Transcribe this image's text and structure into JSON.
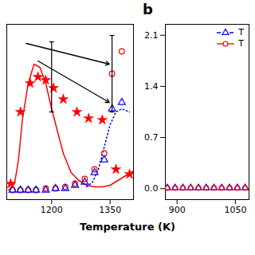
{
  "chart_data": [
    {
      "type": "line",
      "xlabel": "Temperature (K)",
      "xlim": [
        1085,
        1410
      ],
      "ylim": [
        -0.05,
        1.05
      ],
      "xticks": [
        1200,
        1350
      ],
      "tick_labels": "x",
      "series": [
        {
          "type": "line",
          "color": "#ff0000",
          "line_style": "solid",
          "x": [
            1090,
            1105,
            1115,
            1125,
            1140,
            1155,
            1170,
            1185,
            1200,
            1215,
            1230,
            1250,
            1270,
            1290,
            1310,
            1330,
            1350,
            1370,
            1390,
            1410
          ],
          "values": [
            0.01,
            0.05,
            0.2,
            0.45,
            0.68,
            0.8,
            0.78,
            0.68,
            0.52,
            0.38,
            0.24,
            0.12,
            0.07,
            0.04,
            0.03,
            0.03,
            0.04,
            0.07,
            0.1,
            0.13
          ]
        },
        {
          "type": "line",
          "color": "#0000ff",
          "line_style": "dotted",
          "x": [
            1290,
            1305,
            1320,
            1335,
            1350,
            1365,
            1380,
            1400
          ],
          "values": [
            0.03,
            0.06,
            0.14,
            0.28,
            0.42,
            0.5,
            0.52,
            0.5
          ]
        },
        {
          "type": "scatter",
          "color": "#ff0000",
          "marker": "circle",
          "x": [
            1100,
            1120,
            1140,
            1160,
            1185,
            1210,
            1235,
            1260,
            1285,
            1310,
            1335,
            1355,
            1380
          ],
          "values": [
            0.01,
            0.01,
            0.01,
            0.01,
            0.02,
            0.02,
            0.03,
            0.05,
            0.08,
            0.14,
            0.24,
            0.74,
            0.88
          ]
        },
        {
          "type": "scatter",
          "color": "#0000ff",
          "marker": "triangle",
          "x": [
            1100,
            1120,
            1140,
            1160,
            1185,
            1210,
            1235,
            1260,
            1285,
            1310,
            1335,
            1355,
            1380
          ],
          "values": [
            0.01,
            0.01,
            0.01,
            0.01,
            0.01,
            0.02,
            0.02,
            0.04,
            0.06,
            0.12,
            0.2,
            0.52,
            0.56
          ]
        },
        {
          "type": "scatter",
          "color": "#ff0000",
          "marker": "star",
          "x": [
            1095,
            1120,
            1145,
            1165,
            1185,
            1205,
            1230,
            1265,
            1295,
            1330,
            1365,
            1400
          ],
          "values": [
            0.05,
            0.5,
            0.68,
            0.72,
            0.7,
            0.65,
            0.58,
            0.5,
            0.46,
            0.45,
            0.14,
            0.11
          ]
        },
        {
          "type": "errorbar",
          "color": "#000000",
          "x": [
            1200,
            1355
          ],
          "values": [
            0.72,
            0.74
          ],
          "yerr": [
            0.22,
            0.24
          ]
        }
      ],
      "arrows": [
        {
          "x": [
            1135,
            1348
          ],
          "y": [
            0.93,
            0.8
          ]
        },
        {
          "x": [
            1165,
            1348
          ],
          "y": [
            0.82,
            0.56
          ]
        }
      ]
    },
    {
      "type": "scatter",
      "title": "b",
      "xlim": [
        870,
        1085
      ],
      "ylim": [
        -0.15,
        2.25
      ],
      "xticks": [
        900,
        1050
      ],
      "yticks": [
        {
          "value": 0,
          "label": "0.0"
        },
        0.7,
        1.4,
        2.1
      ],
      "legend": "upper right",
      "series": [
        {
          "name": "T",
          "type": "scatter",
          "color": "#0000ff",
          "marker": "triangle",
          "line_style": "dashed",
          "x": [
            875,
            895,
            915,
            935,
            955,
            975,
            995,
            1015,
            1035,
            1055,
            1075
          ],
          "values": [
            0.01,
            0.01,
            0.01,
            0.01,
            0.01,
            0.01,
            0.01,
            0.01,
            0.01,
            0.01,
            0.01
          ]
        },
        {
          "name": "T",
          "type": "scatter",
          "color": "#ff0000",
          "marker": "circle",
          "line_style": "solid",
          "x": [
            875,
            895,
            915,
            935,
            955,
            975,
            995,
            1015,
            1035,
            1055,
            1075
          ],
          "values": [
            0.01,
            0.01,
            0.01,
            0.01,
            0.01,
            0.01,
            0.01,
            0.01,
            0.01,
            0.01,
            0.01
          ]
        }
      ]
    }
  ]
}
